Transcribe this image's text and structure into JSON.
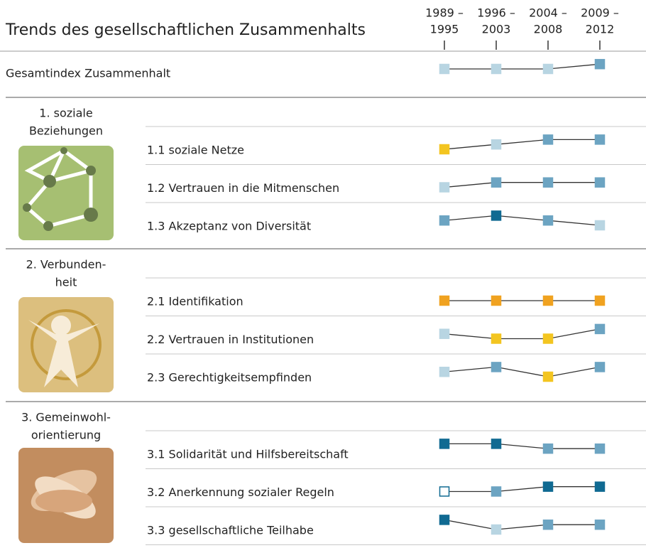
{
  "title": "Trends des gesellschaftlichen Zusammenhalts",
  "periods": [
    {
      "from": "1989 –",
      "to": "1995"
    },
    {
      "from": "1996 –",
      "to": "2003"
    },
    {
      "from": "2004 –",
      "to": "2008"
    },
    {
      "from": "2009 –",
      "to": "2012"
    }
  ],
  "index": {
    "label": "Gesamtindex Zusammenhalt",
    "levels": [
      0,
      0,
      0,
      1
    ],
    "colors": [
      "#b8d5e2",
      "#b8d5e2",
      "#b8d5e2",
      "#6ca4c2"
    ]
  },
  "sections": [
    {
      "title": [
        "1. soziale",
        "Beziehungen"
      ],
      "rows": [
        {
          "label": "1.1 soziale Netze",
          "levels": [
            0,
            1,
            2,
            2
          ],
          "colors": [
            "#f3c520",
            "#b8d5e2",
            "#6ca4c2",
            "#6ca4c2"
          ]
        },
        {
          "label": "1.2 Vertrauen in die Mitmenschen",
          "levels": [
            0,
            1,
            1,
            1
          ],
          "colors": [
            "#b8d5e2",
            "#6ca4c2",
            "#6ca4c2",
            "#6ca4c2"
          ]
        },
        {
          "label": "1.3 Akzeptanz von Diversität",
          "levels": [
            1,
            2,
            1,
            0
          ],
          "colors": [
            "#6ca4c2",
            "#106a92",
            "#6ca4c2",
            "#b8d5e2"
          ]
        }
      ]
    },
    {
      "title": [
        "2. Verbunden-",
        "heit"
      ],
      "rows": [
        {
          "label": "2.1 Identifikation",
          "levels": [
            0,
            0,
            0,
            0
          ],
          "colors": [
            "#f0a220",
            "#f0a220",
            "#f0a220",
            "#f0a220"
          ]
        },
        {
          "label": "2.2 Vertrauen in Institutionen",
          "levels": [
            1,
            0,
            0,
            2
          ],
          "colors": [
            "#b8d5e2",
            "#f3c520",
            "#f3c520",
            "#6ca4c2"
          ]
        },
        {
          "label": "2.3 Gerechtigkeitsempfinden",
          "levels": [
            1,
            2,
            0,
            2
          ],
          "colors": [
            "#b8d5e2",
            "#6ca4c2",
            "#f3c520",
            "#6ca4c2"
          ]
        }
      ]
    },
    {
      "title": [
        "3. Gemeinwohl-",
        "orientierung"
      ],
      "rows": [
        {
          "label": "3.1 Solidarität und Hilfsbereitschaft",
          "levels": [
            2,
            2,
            1,
            1
          ],
          "colors": [
            "#106a92",
            "#106a92",
            "#6ca4c2",
            "#6ca4c2"
          ]
        },
        {
          "label": "3.2 Anerkennung sozialer Regeln",
          "levels": [
            0,
            0,
            1,
            1
          ],
          "colors": [
            "#ffffff",
            "#6ca4c2",
            "#106a92",
            "#106a92"
          ]
        },
        {
          "label": "3.3 gesellschaftliche Teilhabe",
          "levels": [
            2,
            0,
            1,
            1
          ],
          "colors": [
            "#106a92",
            "#b8d5e2",
            "#6ca4c2",
            "#6ca4c2"
          ]
        }
      ]
    }
  ]
}
